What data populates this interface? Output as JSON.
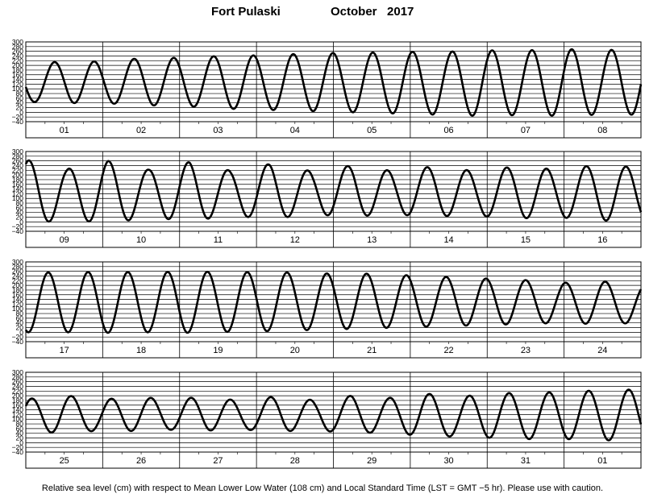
{
  "header": {
    "station": "Fort Pulaski",
    "month_year": "October   2017"
  },
  "footer": {
    "note": "Relative sea level (cm) with respect to Mean Lower Low Water (108 cm) and Local Standard Time (LST = GMT −5 hr). Please use with caution."
  },
  "colors": {
    "curve": "#000000",
    "grid": "#000000",
    "background": "#ffffff"
  },
  "chart_data": {
    "type": "line",
    "title": "Fort Pulaski October 2017",
    "ylabel": "",
    "xlabel": "",
    "ylim": [
      -40,
      300
    ],
    "yticks": [
      300,
      280,
      260,
      240,
      220,
      200,
      180,
      160,
      140,
      120,
      100,
      80,
      60,
      40,
      20,
      0,
      -20,
      -40
    ],
    "ytick_labels": [
      "300",
      "280",
      "260",
      "240",
      "220",
      "200",
      "180",
      "160",
      "140",
      "120",
      "100",
      "80",
      "60",
      "40",
      "20",
      "0",
      "−20",
      "−40"
    ],
    "grid": true,
    "tidal_period_hours": 12.42,
    "panels": [
      {
        "days": [
          "01",
          "02",
          "03",
          "04",
          "05",
          "06",
          "07",
          "08"
        ],
        "series": [
          {
            "start_phase_deg": 191,
            "highs": [
              200,
              220,
              215,
              235,
              230,
              245,
              240,
              255,
              250,
              260,
              255,
              265,
              262,
              270,
              265,
              268
            ],
            "lows": [
              45,
              40,
              38,
              30,
              25,
              15,
              10,
              5,
              0,
              -5,
              -10,
              -15,
              -12,
              -15,
              -10,
              -10
            ]
          }
        ]
      },
      {
        "days": [
          "09",
          "10",
          "11",
          "12",
          "13",
          "14",
          "15",
          "16"
        ],
        "series": [
          {
            "start_phase_deg": 60,
            "highs": [
              265,
              225,
              260,
              222,
              255,
              218,
              248,
              215,
              242,
              215,
              238,
              215,
              238,
              222,
              245,
              230
            ],
            "lows": [
              -10,
              10,
              -5,
              18,
              5,
              25,
              15,
              30,
              25,
              30,
              25,
              25,
              15,
              20,
              5,
              10
            ]
          }
        ]
      },
      {
        "days": [
          "17",
          "18",
          "19",
          "20",
          "21",
          "22",
          "23",
          "24"
        ],
        "series": [
          {
            "start_phase_deg": 247,
            "highs": [
              255,
              255,
              258,
              255,
              260,
              255,
              258,
              250,
              252,
              245,
              238,
              230,
              225,
              210,
              218,
              200
            ],
            "lows": [
              0,
              0,
              -2,
              0,
              -2,
              2,
              5,
              10,
              15,
              20,
              25,
              30,
              35,
              40,
              35,
              40
            ]
          }
        ]
      },
      {
        "days": [
          "25",
          "26",
          "27",
          "28",
          "29",
          "30",
          "31",
          "01"
        ],
        "series": [
          {
            "start_phase_deg": 37,
            "highs": [
              185,
              205,
              180,
              200,
              180,
              200,
              175,
              200,
              180,
              200,
              190,
              210,
              195,
              215,
              205,
              225,
              218,
              230
            ],
            "lows": [
              40,
              45,
              50,
              50,
              55,
              52,
              55,
              50,
              50,
              45,
              40,
              30,
              25,
              20,
              15,
              15,
              10,
              10
            ]
          }
        ]
      }
    ]
  }
}
